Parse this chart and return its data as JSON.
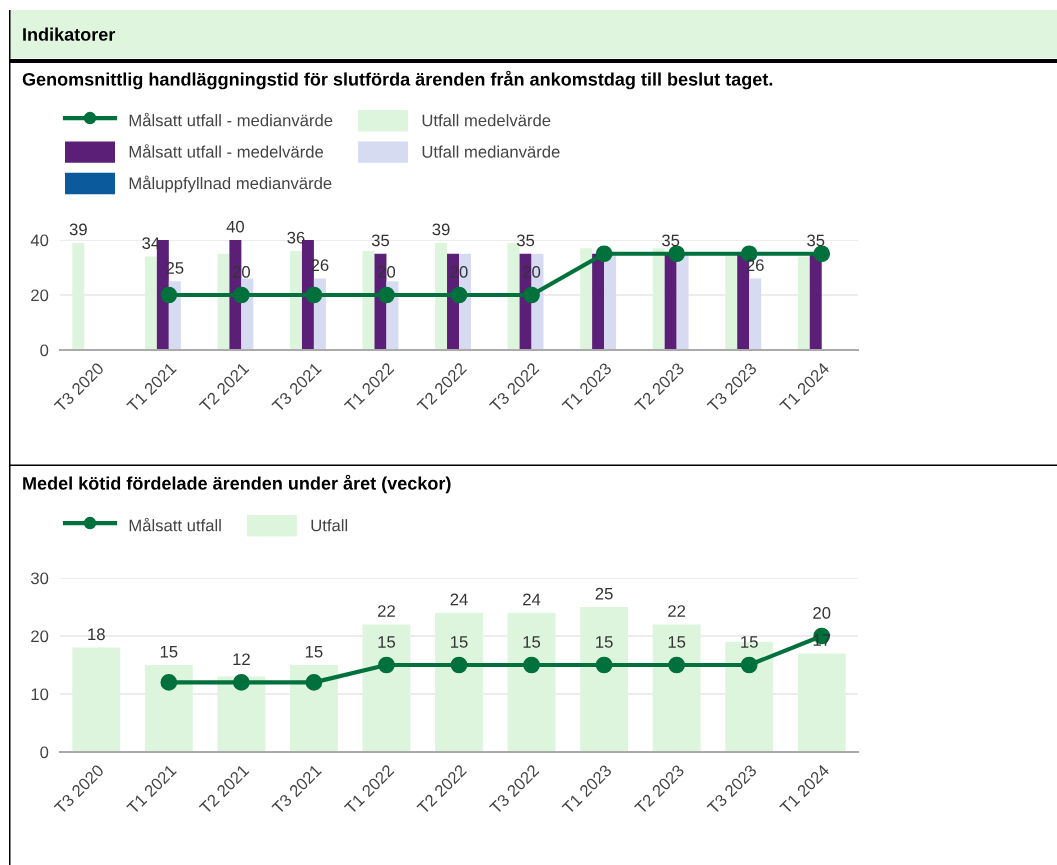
{
  "chart_data": [
    {
      "type": "bar",
      "title": "Genomsnittlig handläggningstid för slutförda ärenden från ankomstdag till beslut taget.",
      "annotations": [
        "Indikatorer"
      ],
      "categories": [
        "T3 2020",
        "T1 2021",
        "T2 2021",
        "T3 2021",
        "T1 2022",
        "T2 2022",
        "T3 2022",
        "T1 2023",
        "T2 2023",
        "T3 2023",
        "T1 2024"
      ],
      "series": [
        {
          "name": "Målsatt utfall - medianvärde",
          "type": "line",
          "color": "#00703c",
          "values": [
            null,
            20,
            20,
            20,
            20,
            20,
            20,
            35,
            35,
            35,
            35
          ],
          "value_labels": [
            null,
            null,
            "20",
            null,
            "20",
            "20",
            "20",
            null,
            null,
            null,
            null
          ]
        },
        {
          "name": "Utfall medelvärde",
          "color": "#ddf5dd",
          "values": [
            39,
            34,
            35,
            36,
            36,
            39,
            39,
            37,
            37,
            35,
            34
          ],
          "value_labels": [
            "39",
            "34",
            null,
            "36",
            null,
            "39",
            null,
            null,
            null,
            null,
            null
          ]
        },
        {
          "name": "Målsatt utfall - medelvärde",
          "color": "#5b1f78",
          "values": [
            null,
            40,
            40,
            40,
            35,
            35,
            35,
            35,
            35,
            35,
            35
          ],
          "value_labels": [
            null,
            null,
            "40",
            null,
            "35",
            null,
            "35",
            null,
            "35",
            null,
            "35"
          ]
        },
        {
          "name": "Utfall medianvärde",
          "color": "#d6dbf2",
          "values": [
            null,
            25,
            26,
            26,
            25,
            35,
            35,
            35,
            35,
            26,
            null
          ],
          "value_labels": [
            null,
            "25",
            null,
            "26",
            null,
            null,
            null,
            null,
            null,
            "26",
            null
          ]
        },
        {
          "name": "Måluppfyllnad medianvärde",
          "color": "#0a5a9c",
          "values": [
            null,
            null,
            null,
            null,
            null,
            null,
            null,
            null,
            null,
            null,
            null
          ]
        }
      ],
      "ylim": [
        0,
        40
      ],
      "yticks": [
        0,
        20,
        40
      ],
      "grid": "y",
      "legend": "top left",
      "marker": "circle"
    },
    {
      "type": "bar",
      "title": "Medel kötid fördelade ärenden under året (veckor)",
      "categories": [
        "T3 2020",
        "T1 2021",
        "T2 2021",
        "T3 2021",
        "T1 2022",
        "T2 2022",
        "T3 2022",
        "T1 2023",
        "T2 2023",
        "T3 2023",
        "T1 2024"
      ],
      "series": [
        {
          "name": "Målsatt utfall",
          "type": "line",
          "color": "#00703c",
          "values": [
            null,
            12,
            12,
            12,
            15,
            15,
            15,
            15,
            15,
            15,
            20
          ],
          "value_labels": [
            null,
            null,
            "12",
            null,
            "15",
            "15",
            "15",
            "15",
            "15",
            "15",
            "20"
          ]
        },
        {
          "name": "Utfall",
          "color": "#ddf5dd",
          "values": [
            18,
            15,
            13,
            15,
            22,
            24,
            24,
            25,
            22,
            19,
            17
          ],
          "value_labels": [
            "18",
            "15",
            null,
            "15",
            "22",
            "24",
            "24",
            "25",
            "22",
            null,
            "17"
          ]
        }
      ],
      "ylim": [
        0,
        30
      ],
      "yticks": [
        0,
        10,
        20,
        30
      ],
      "grid": "y",
      "legend": "top left",
      "marker": "circle"
    }
  ]
}
